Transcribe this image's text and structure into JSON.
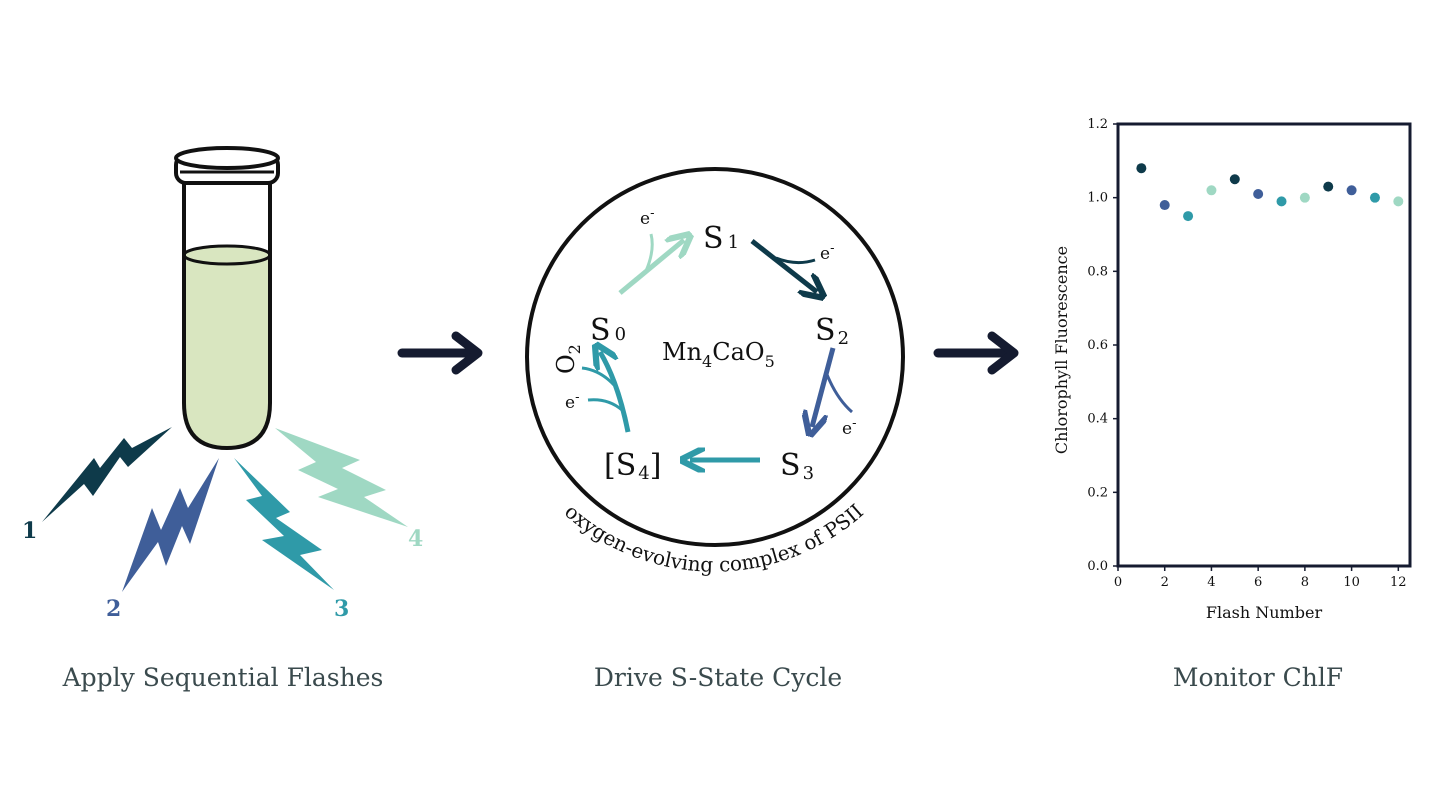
{
  "colors": {
    "flash1": "#0e3a4a",
    "flash2": "#3f5e99",
    "flash3": "#2f9aa8",
    "flash4": "#9fd8c3",
    "tube_liquid": "#d9e6c0",
    "ink": "#151b30"
  },
  "panels": {
    "left": {
      "caption": "Apply Sequential Flashes"
    },
    "middle": {
      "caption": "Drive S-State Cycle"
    },
    "right": {
      "caption": "Monitor ChlF"
    }
  },
  "flashes": [
    {
      "label": "1",
      "color": "#0e3a4a"
    },
    {
      "label": "2",
      "color": "#3f5e99"
    },
    {
      "label": "3",
      "color": "#2f9aa8"
    },
    {
      "label": "4",
      "color": "#9fd8c3"
    }
  ],
  "cycle": {
    "center": {
      "main": "Mn",
      "sub1": "4",
      "mid": "CaO",
      "sub2": "5"
    },
    "ring_text": "oxygen-evolving complex of PSII",
    "states": {
      "s0": {
        "main": "S",
        "sub": "0"
      },
      "s1": {
        "main": "S",
        "sub": "1"
      },
      "s2": {
        "main": "S",
        "sub": "2"
      },
      "s3": {
        "main": "S",
        "sub": "3"
      },
      "s4": {
        "open": "[",
        "main": "S",
        "sub": "4",
        "close": "]"
      }
    },
    "electron": "e",
    "electron_sup": "-",
    "oxygen": {
      "main": "O",
      "sub": "2"
    }
  },
  "chart_data": {
    "type": "scatter",
    "title": "",
    "xlabel": "Flash Number",
    "ylabel": "Chlorophyll Fluorescence",
    "xlim": [
      0,
      12.5
    ],
    "ylim": [
      0,
      1.2
    ],
    "xticks": [
      0,
      2,
      4,
      6,
      8,
      10,
      12
    ],
    "yticks": [
      0.0,
      0.2,
      0.4,
      0.6,
      0.8,
      1.0,
      1.2
    ],
    "xtick_labels": [
      "0",
      "2",
      "4",
      "6",
      "8",
      "10",
      "12"
    ],
    "ytick_labels": [
      "0.0",
      "0.2",
      "0.4",
      "0.6",
      "0.8",
      "1.0",
      "1.2"
    ],
    "points": [
      {
        "x": 1,
        "y": 1.08,
        "color": "#0e3a4a"
      },
      {
        "x": 2,
        "y": 0.98,
        "color": "#3f5e99"
      },
      {
        "x": 3,
        "y": 0.95,
        "color": "#2f9aa8"
      },
      {
        "x": 4,
        "y": 1.02,
        "color": "#9fd8c3"
      },
      {
        "x": 5,
        "y": 1.05,
        "color": "#0e3a4a"
      },
      {
        "x": 6,
        "y": 1.01,
        "color": "#3f5e99"
      },
      {
        "x": 7,
        "y": 0.99,
        "color": "#2f9aa8"
      },
      {
        "x": 8,
        "y": 1.0,
        "color": "#9fd8c3"
      },
      {
        "x": 9,
        "y": 1.03,
        "color": "#0e3a4a"
      },
      {
        "x": 10,
        "y": 1.02,
        "color": "#3f5e99"
      },
      {
        "x": 11,
        "y": 1.0,
        "color": "#2f9aa8"
      },
      {
        "x": 12,
        "y": 0.99,
        "color": "#9fd8c3"
      }
    ],
    "grid": false,
    "legend": "none"
  }
}
